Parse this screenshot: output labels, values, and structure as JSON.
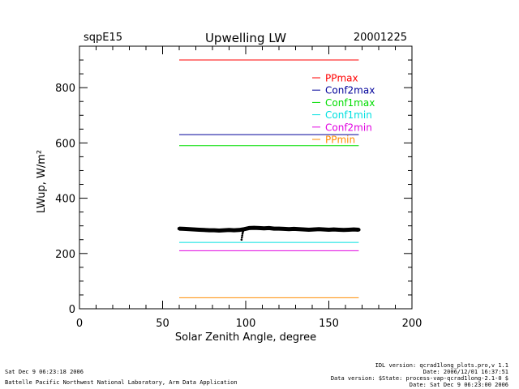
{
  "chart_data": {
    "type": "line",
    "site": "sqpE15",
    "title": "Upwelling LW",
    "date": "20001225",
    "xlabel": "Solar Zenith Angle, degree",
    "ylabel": "LWup, W/m²",
    "xlim": [
      0,
      200
    ],
    "ylim": [
      0,
      950
    ],
    "x_major_ticks": [
      0,
      50,
      100,
      150,
      200
    ],
    "x_tick_labels": [
      "0",
      "50",
      "100",
      "150",
      "200"
    ],
    "y_major_ticks": [
      0,
      200,
      400,
      600,
      800
    ],
    "y_tick_labels": [
      "0",
      "200",
      "400",
      "600",
      "800"
    ],
    "reference_lines": [
      {
        "name": "PPmax",
        "y": 900,
        "x_range": [
          60,
          168
        ],
        "color": "#ff0000"
      },
      {
        "name": "Conf2max",
        "y": 630,
        "x_range": [
          60,
          168
        ],
        "color": "#00009a"
      },
      {
        "name": "Conf1max",
        "y": 590,
        "x_range": [
          60,
          168
        ],
        "color": "#00dd00"
      },
      {
        "name": "Conf1min",
        "y": 240,
        "x_range": [
          60,
          168
        ],
        "color": "#00e0e0"
      },
      {
        "name": "Conf2min",
        "y": 210,
        "x_range": [
          60,
          168
        ],
        "color": "#e000e0"
      },
      {
        "name": "PPmin",
        "y": 40,
        "x_range": [
          60,
          168
        ],
        "color": "#ff8c00"
      }
    ],
    "series": [
      {
        "name": "LWup observations",
        "color": "#000000",
        "x": [
          60,
          63,
          66,
          69,
          72,
          75,
          78,
          81,
          84,
          87,
          90,
          93,
          96,
          99,
          102,
          105,
          108,
          111,
          114,
          117,
          120,
          123,
          126,
          129,
          132,
          135,
          138,
          141,
          144,
          147,
          150,
          153,
          156,
          159,
          162,
          165,
          168
        ],
        "y": [
          290,
          289,
          288,
          287,
          286,
          285,
          284,
          284,
          283,
          284,
          285,
          284,
          285,
          288,
          292,
          293,
          292,
          291,
          292,
          290,
          290,
          289,
          288,
          289,
          288,
          287,
          286,
          287,
          288,
          287,
          286,
          287,
          286,
          285,
          286,
          287,
          286
        ]
      },
      {
        "name": "LWup dip",
        "color": "#000000",
        "x": [
          97.5,
          97.7,
          97.9,
          98.1,
          98.3,
          98.5
        ],
        "y": [
          250,
          258,
          265,
          272,
          278,
          282
        ]
      }
    ],
    "legend": [
      "PPmax",
      "Conf2max",
      "Conf1max",
      "Conf1min",
      "Conf2min",
      "PPmin"
    ],
    "legend_placement": "top-right"
  },
  "footer": {
    "left_line1": "Sat Dec  9 06:23:18 2006",
    "left_line2": "Battelle Pacific Northwest National Laboratory, Arm Data Application",
    "right_line1": "IDL version: qcrad1long_plots.pro,v 1.1",
    "right_line2": "Date: 2006/12/01 16:37:51",
    "right_line3": "Data version: $State: process-vap-qcrad1long-2.1-0 $",
    "right_line4": "Date: Sat Dec  9 06:23:00 2006"
  }
}
